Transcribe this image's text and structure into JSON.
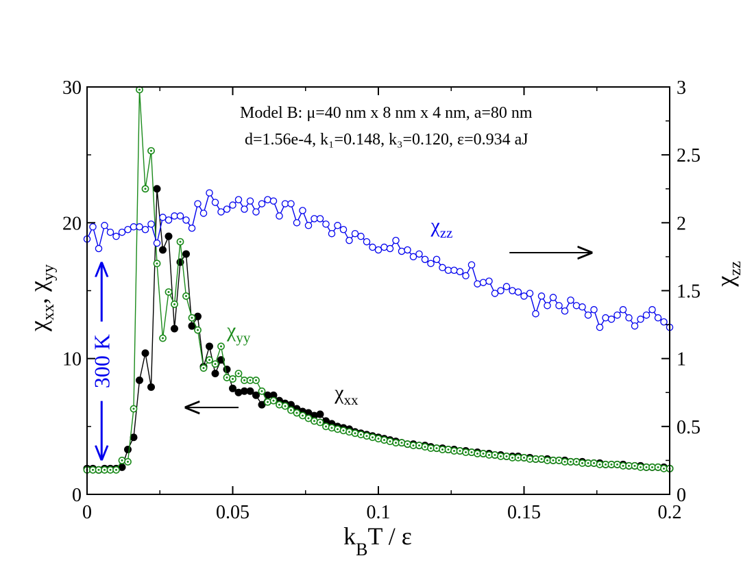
{
  "chart_data": {
    "type": "line",
    "annotation_lines": [
      "Model B: μ=40 nm x 8 nm x 4 nm, a=80 nm",
      "d=1.56e-4,  k₁=0.148,  k₃=0.120, ε=0.934 aJ"
    ],
    "xlabel": "kBT / ε",
    "xlabel_parts": {
      "k": "k",
      "b": "B",
      "rest": "T / ε"
    },
    "ylabel_left": "χxx, χyy",
    "ylabel_left_parts": {
      "chi1": "χ",
      "sub1": "xx",
      "sep": ", ",
      "chi2": "χ",
      "sub2": "yy"
    },
    "ylabel_right": "χzz",
    "ylabel_right_parts": {
      "chi": "χ",
      "sub": "zz"
    },
    "xlim": [
      0,
      0.2
    ],
    "ylim_left": [
      0,
      30
    ],
    "ylim_right": [
      0,
      3
    ],
    "x_ticks": [
      {
        "v": 0,
        "label": "0"
      },
      {
        "v": 0.05,
        "label": "0.05"
      },
      {
        "v": 0.1,
        "label": "0.1"
      },
      {
        "v": 0.15,
        "label": "0.15"
      },
      {
        "v": 0.2,
        "label": "0.2"
      }
    ],
    "y_left_ticks": [
      {
        "v": 0,
        "label": "0"
      },
      {
        "v": 10,
        "label": "10"
      },
      {
        "v": 20,
        "label": "20"
      },
      {
        "v": 30,
        "label": "30"
      }
    ],
    "y_right_ticks": [
      {
        "v": 0,
        "label": "0"
      },
      {
        "v": 0.5,
        "label": "0.5"
      },
      {
        "v": 1,
        "label": "1"
      },
      {
        "v": 1.5,
        "label": "1.5"
      },
      {
        "v": 2,
        "label": "2"
      },
      {
        "v": 2.5,
        "label": "2.5"
      },
      {
        "v": 3,
        "label": "3"
      }
    ],
    "series": [
      {
        "name": "χxx",
        "axis": "left",
        "color": "#000000",
        "marker": "filled-circle",
        "x": [
          0,
          0.002,
          0.004,
          0.006,
          0.008,
          0.01,
          0.012,
          0.014,
          0.016,
          0.018,
          0.02,
          0.022,
          0.024,
          0.026,
          0.028,
          0.03,
          0.032,
          0.034,
          0.036,
          0.038,
          0.04,
          0.042,
          0.044,
          0.046,
          0.048,
          0.05,
          0.052,
          0.054,
          0.056,
          0.058,
          0.06,
          0.062,
          0.064,
          0.066,
          0.068,
          0.07,
          0.072,
          0.074,
          0.076,
          0.078,
          0.08,
          0.082,
          0.084,
          0.086,
          0.088,
          0.09,
          0.092,
          0.094,
          0.096,
          0.098,
          0.1,
          0.102,
          0.104,
          0.106,
          0.108,
          0.11,
          0.112,
          0.114,
          0.116,
          0.118,
          0.12,
          0.122,
          0.124,
          0.126,
          0.128,
          0.13,
          0.132,
          0.134,
          0.136,
          0.138,
          0.14,
          0.142,
          0.144,
          0.146,
          0.148,
          0.15,
          0.152,
          0.154,
          0.156,
          0.158,
          0.16,
          0.162,
          0.164,
          0.166,
          0.168,
          0.17,
          0.172,
          0.174,
          0.176,
          0.178,
          0.18,
          0.182,
          0.184,
          0.186,
          0.188,
          0.19,
          0.192,
          0.194,
          0.196,
          0.198,
          0.2
        ],
        "values": [
          1.9,
          1.9,
          1.8,
          1.9,
          1.9,
          1.9,
          2.0,
          3.3,
          4.2,
          8.4,
          10.4,
          7.9,
          22.5,
          18.0,
          19.0,
          12.2,
          17.1,
          17.7,
          12.4,
          13.1,
          9.4,
          10.9,
          8.9,
          9.9,
          9.2,
          7.8,
          7.5,
          7.6,
          7.6,
          7.3,
          6.6,
          7.3,
          7.3,
          6.9,
          6.7,
          6.6,
          6.3,
          6.1,
          6.0,
          5.8,
          5.9,
          5.4,
          5.2,
          5.0,
          4.9,
          4.8,
          4.6,
          4.5,
          4.4,
          4.3,
          4.2,
          4.1,
          4.0,
          3.9,
          3.8,
          3.7,
          3.7,
          3.6,
          3.6,
          3.5,
          3.4,
          3.4,
          3.3,
          3.3,
          3.2,
          3.2,
          3.1,
          3.1,
          3.0,
          3.0,
          2.9,
          2.9,
          2.8,
          2.8,
          2.8,
          2.7,
          2.7,
          2.6,
          2.6,
          2.6,
          2.5,
          2.5,
          2.5,
          2.4,
          2.4,
          2.4,
          2.3,
          2.3,
          2.3,
          2.2,
          2.2,
          2.2,
          2.2,
          2.1,
          2.1,
          2.1,
          2.0,
          2.0,
          2.0,
          2.0,
          1.9
        ]
      },
      {
        "name": "χyy",
        "axis": "left",
        "color": "#1a8a1a",
        "marker": "dotted-circle",
        "x": [
          0,
          0.002,
          0.004,
          0.006,
          0.008,
          0.01,
          0.012,
          0.014,
          0.016,
          0.018,
          0.02,
          0.022,
          0.024,
          0.026,
          0.028,
          0.03,
          0.032,
          0.034,
          0.036,
          0.038,
          0.04,
          0.042,
          0.044,
          0.046,
          0.048,
          0.05,
          0.052,
          0.054,
          0.056,
          0.058,
          0.06,
          0.062,
          0.064,
          0.066,
          0.068,
          0.07,
          0.072,
          0.074,
          0.076,
          0.078,
          0.08,
          0.082,
          0.084,
          0.086,
          0.088,
          0.09,
          0.092,
          0.094,
          0.096,
          0.098,
          0.1,
          0.102,
          0.104,
          0.106,
          0.108,
          0.11,
          0.112,
          0.114,
          0.116,
          0.118,
          0.12,
          0.122,
          0.124,
          0.126,
          0.128,
          0.13,
          0.132,
          0.134,
          0.136,
          0.138,
          0.14,
          0.142,
          0.144,
          0.146,
          0.148,
          0.15,
          0.152,
          0.154,
          0.156,
          0.158,
          0.16,
          0.162,
          0.164,
          0.166,
          0.168,
          0.17,
          0.172,
          0.174,
          0.176,
          0.178,
          0.18,
          0.182,
          0.184,
          0.186,
          0.188,
          0.19,
          0.192,
          0.194,
          0.196,
          0.198,
          0.2
        ],
        "values": [
          1.8,
          1.8,
          1.8,
          1.8,
          1.8,
          1.8,
          2.5,
          2.4,
          6.3,
          29.8,
          22.5,
          25.3,
          17.0,
          11.5,
          14.9,
          14.0,
          18.6,
          14.6,
          13.0,
          12.1,
          9.3,
          9.9,
          9.6,
          10.9,
          8.6,
          8.5,
          8.9,
          8.4,
          8.4,
          8.4,
          7.6,
          6.8,
          6.9,
          6.6,
          6.5,
          6.2,
          6.0,
          5.8,
          5.6,
          5.4,
          5.3,
          5.0,
          4.9,
          4.8,
          4.7,
          4.6,
          4.5,
          4.4,
          4.3,
          4.2,
          4.1,
          4.0,
          3.9,
          3.8,
          3.8,
          3.7,
          3.6,
          3.6,
          3.5,
          3.4,
          3.4,
          3.3,
          3.3,
          3.2,
          3.2,
          3.1,
          3.1,
          3.0,
          3.0,
          2.9,
          2.9,
          2.8,
          2.8,
          2.7,
          2.7,
          2.7,
          2.6,
          2.6,
          2.6,
          2.5,
          2.5,
          2.5,
          2.4,
          2.4,
          2.4,
          2.3,
          2.3,
          2.3,
          2.2,
          2.2,
          2.2,
          2.2,
          2.1,
          2.1,
          2.1,
          2.0,
          2.0,
          2.0,
          2.0,
          1.9,
          1.9
        ]
      },
      {
        "name": "χzz",
        "axis": "right",
        "color": "#0000ee",
        "marker": "open-circle",
        "x": [
          0,
          0.002,
          0.004,
          0.006,
          0.008,
          0.01,
          0.012,
          0.014,
          0.016,
          0.018,
          0.02,
          0.022,
          0.024,
          0.026,
          0.028,
          0.03,
          0.032,
          0.034,
          0.036,
          0.038,
          0.04,
          0.042,
          0.044,
          0.046,
          0.048,
          0.05,
          0.052,
          0.054,
          0.056,
          0.058,
          0.06,
          0.062,
          0.064,
          0.066,
          0.068,
          0.07,
          0.072,
          0.074,
          0.076,
          0.078,
          0.08,
          0.082,
          0.084,
          0.086,
          0.088,
          0.09,
          0.092,
          0.094,
          0.096,
          0.098,
          0.1,
          0.102,
          0.104,
          0.106,
          0.108,
          0.11,
          0.112,
          0.114,
          0.116,
          0.118,
          0.12,
          0.122,
          0.124,
          0.126,
          0.128,
          0.13,
          0.132,
          0.134,
          0.136,
          0.138,
          0.14,
          0.142,
          0.144,
          0.146,
          0.148,
          0.15,
          0.152,
          0.154,
          0.156,
          0.158,
          0.16,
          0.162,
          0.164,
          0.166,
          0.168,
          0.17,
          0.172,
          0.174,
          0.176,
          0.178,
          0.18,
          0.182,
          0.184,
          0.186,
          0.188,
          0.19,
          0.192,
          0.194,
          0.196,
          0.198,
          0.2
        ],
        "values": [
          1.88,
          1.97,
          1.81,
          1.98,
          1.93,
          1.9,
          1.93,
          1.95,
          1.97,
          1.97,
          1.95,
          1.99,
          1.85,
          2.04,
          2.02,
          2.05,
          2.05,
          2.02,
          1.96,
          2.14,
          2.07,
          2.22,
          2.15,
          2.08,
          2.1,
          2.13,
          2.17,
          2.1,
          2.16,
          2.08,
          2.14,
          2.17,
          2.16,
          2.05,
          2.14,
          2.14,
          2.0,
          2.09,
          1.98,
          2.03,
          2.03,
          1.99,
          1.92,
          1.98,
          1.95,
          1.87,
          1.92,
          1.9,
          1.86,
          1.82,
          1.8,
          1.82,
          1.81,
          1.87,
          1.79,
          1.8,
          1.75,
          1.77,
          1.73,
          1.7,
          1.73,
          1.67,
          1.65,
          1.65,
          1.64,
          1.61,
          1.69,
          1.55,
          1.56,
          1.57,
          1.48,
          1.5,
          1.53,
          1.5,
          1.49,
          1.46,
          1.48,
          1.33,
          1.46,
          1.39,
          1.45,
          1.39,
          1.35,
          1.43,
          1.39,
          1.38,
          1.32,
          1.36,
          1.23,
          1.3,
          1.29,
          1.32,
          1.36,
          1.3,
          1.24,
          1.29,
          1.32,
          1.36,
          1.3,
          1.27,
          1.23
        ]
      }
    ],
    "series_labels": [
      {
        "series": 0,
        "chi": "χ",
        "sub": "xx",
        "x": 0.085,
        "y": 7.0,
        "axis": "left"
      },
      {
        "series": 1,
        "chi": "χ",
        "sub": "yy",
        "x": 0.048,
        "y": 11.6,
        "axis": "left"
      },
      {
        "series": 2,
        "chi": "χ",
        "sub": "zz",
        "x": 0.118,
        "y": 1.93,
        "axis": "right"
      }
    ],
    "arrows": [
      {
        "points_to": "left-axis",
        "from_x": 0.052,
        "to_x": 0.034,
        "y": 6.4,
        "axis": "left",
        "color": "#000000"
      },
      {
        "points_to": "right-axis",
        "from_x": 0.145,
        "to_x": 0.173,
        "y": 1.78,
        "axis": "right",
        "color": "#000000"
      }
    ],
    "temperature_marker": {
      "label": "300 K",
      "x": 0.005,
      "y_top": 17.0,
      "y_bottom": 2.6,
      "axis": "left",
      "color": "#0000ee"
    }
  }
}
